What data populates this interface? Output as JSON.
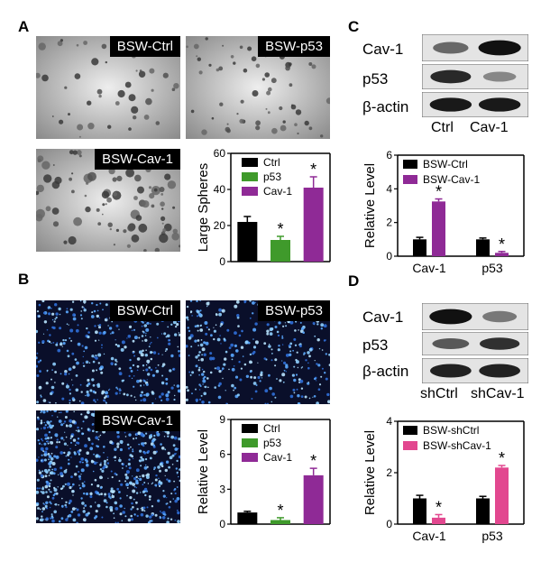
{
  "panels": {
    "A": {
      "letter": "A",
      "images": [
        {
          "label": "BSW-Ctrl"
        },
        {
          "label": "BSW-p53"
        },
        {
          "label": "BSW-Cav-1"
        }
      ]
    },
    "B": {
      "letter": "B",
      "images": [
        {
          "label": "BSW-Ctrl"
        },
        {
          "label": "BSW-p53"
        },
        {
          "label": "BSW-Cav-1"
        }
      ]
    },
    "C": {
      "letter": "C",
      "blot_rows": [
        "Cav-1",
        "p53",
        "β-actin"
      ],
      "lanes": [
        "Ctrl",
        "Cav-1"
      ]
    },
    "D": {
      "letter": "D",
      "blot_rows": [
        "Cav-1",
        "p53",
        "β-actin"
      ],
      "lanes": [
        "shCtrl",
        "shCav-1"
      ]
    }
  },
  "colors": {
    "black": "#000000",
    "green": "#3f9a2b",
    "purple": "#8f2a96",
    "pink": "#e2478f"
  },
  "chart_data": [
    {
      "id": "A",
      "type": "bar",
      "ylabel": "Large Spheres",
      "ylim": [
        0,
        60
      ],
      "yticks": [
        0,
        20,
        40,
        60
      ],
      "categories": [
        "Ctrl",
        "p53",
        "Cav-1"
      ],
      "values": [
        22,
        12,
        41
      ],
      "errors": [
        3,
        2,
        6
      ],
      "colors": [
        "#000000",
        "#3f9a2b",
        "#8f2a96"
      ],
      "stars": [
        false,
        true,
        true
      ],
      "legend": [
        "Ctrl",
        "p53",
        "Cav-1"
      ],
      "star_symbol": "*"
    },
    {
      "id": "B",
      "type": "bar",
      "ylabel": "Relative Level",
      "ylim": [
        0,
        9
      ],
      "yticks": [
        0,
        3,
        6,
        9
      ],
      "categories": [
        "Ctrl",
        "p53",
        "Cav-1"
      ],
      "values": [
        1.0,
        0.35,
        4.2
      ],
      "errors": [
        0.1,
        0.2,
        0.6
      ],
      "colors": [
        "#000000",
        "#3f9a2b",
        "#8f2a96"
      ],
      "stars": [
        false,
        true,
        true
      ],
      "legend": [
        "Ctrl",
        "p53",
        "Cav-1"
      ],
      "star_symbol": "*"
    },
    {
      "id": "C",
      "type": "bar",
      "ylabel": "Relative Level",
      "ylim": [
        0,
        6
      ],
      "yticks": [
        0,
        2,
        4,
        6
      ],
      "categories": [
        "Cav-1",
        "p53"
      ],
      "series": [
        {
          "name": "BSW-Ctrl",
          "values": [
            1.0,
            1.0
          ],
          "errors": [
            0.12,
            0.08
          ],
          "color": "#000000",
          "stars": [
            false,
            false
          ]
        },
        {
          "name": "BSW-Cav-1",
          "values": [
            3.25,
            0.2
          ],
          "errors": [
            0.15,
            0.08
          ],
          "color": "#8f2a96",
          "stars": [
            true,
            true
          ]
        }
      ],
      "star_symbol": "*"
    },
    {
      "id": "D",
      "type": "bar",
      "ylabel": "Relative Level",
      "ylim": [
        0,
        4
      ],
      "yticks": [
        0,
        2,
        4
      ],
      "categories": [
        "Cav-1",
        "p53"
      ],
      "series": [
        {
          "name": "BSW-shCtrl",
          "values": [
            1.0,
            1.0
          ],
          "errors": [
            0.12,
            0.08
          ],
          "color": "#000000",
          "stars": [
            false,
            false
          ]
        },
        {
          "name": "BSW-shCav-1",
          "values": [
            0.25,
            2.2
          ],
          "errors": [
            0.12,
            0.08
          ],
          "color": "#e2478f",
          "stars": [
            true,
            true
          ]
        }
      ],
      "star_symbol": "*"
    }
  ]
}
